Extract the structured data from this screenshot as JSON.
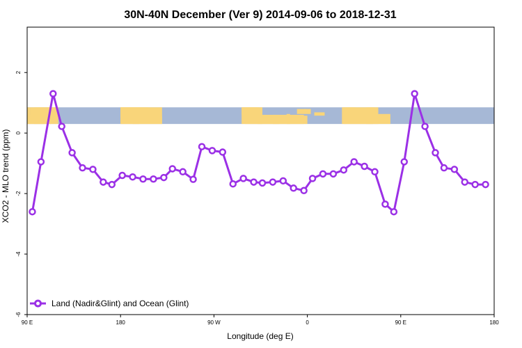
{
  "chart_data": {
    "type": "line",
    "title": "30N-40N December (Ver 9)   2014-09-06 to 2018-12-31",
    "xlabel": "Longitude (deg E)",
    "ylabel": "XCO2 - MLO trend (ppm)",
    "xlim": [
      -90,
      180
    ],
    "ylim": [
      -6,
      3.5
    ],
    "x_tick_positions": [
      -90,
      -36,
      18,
      72,
      126,
      180
    ],
    "x_tick_labels": [
      "90 E",
      "180",
      "90 W",
      "0",
      "90 E",
      "180"
    ],
    "y_ticks": [
      -6,
      -4,
      -2,
      0,
      2
    ],
    "grid": false,
    "legend_position": "bottom-left",
    "colors": {
      "series": "#9b30e6",
      "ocean": "#a6b8d6",
      "land": "#f9d57a"
    },
    "background_map": "world map strip (ocean blue, land yellow) at y 0.3 to 0.85",
    "series": [
      {
        "name": "Land (Nadir&Glint) and Ocean (Glint)",
        "x": [
          -87,
          -82,
          -75,
          -70,
          -64,
          -58,
          -52,
          -46,
          -41,
          -35,
          -29,
          -23,
          -17,
          -11,
          -6,
          0,
          6,
          11,
          17,
          23,
          29,
          35,
          41,
          46,
          52,
          58,
          64,
          70,
          75,
          81,
          87,
          93,
          99,
          105,
          111,
          117,
          122,
          128,
          134,
          140,
          146,
          151,
          157,
          163,
          169,
          175
        ],
        "y": [
          -2.6,
          -0.95,
          1.3,
          0.22,
          -0.65,
          -1.15,
          -1.2,
          -1.62,
          -1.7,
          -1.4,
          -1.45,
          -1.52,
          -1.52,
          -1.47,
          -1.18,
          -1.28,
          -1.53,
          -0.45,
          -0.58,
          -0.63,
          -1.68,
          -1.5,
          -1.62,
          -1.65,
          -1.62,
          -1.58,
          -1.82,
          -1.9,
          -1.5,
          -1.35,
          -1.35,
          -1.22,
          -0.95,
          -1.1,
          -1.28,
          -2.35,
          -2.6,
          -0.95,
          1.3,
          0.22,
          -0.65,
          -1.15,
          -1.2,
          -1.62,
          -1.7,
          -1.7
        ]
      }
    ]
  }
}
